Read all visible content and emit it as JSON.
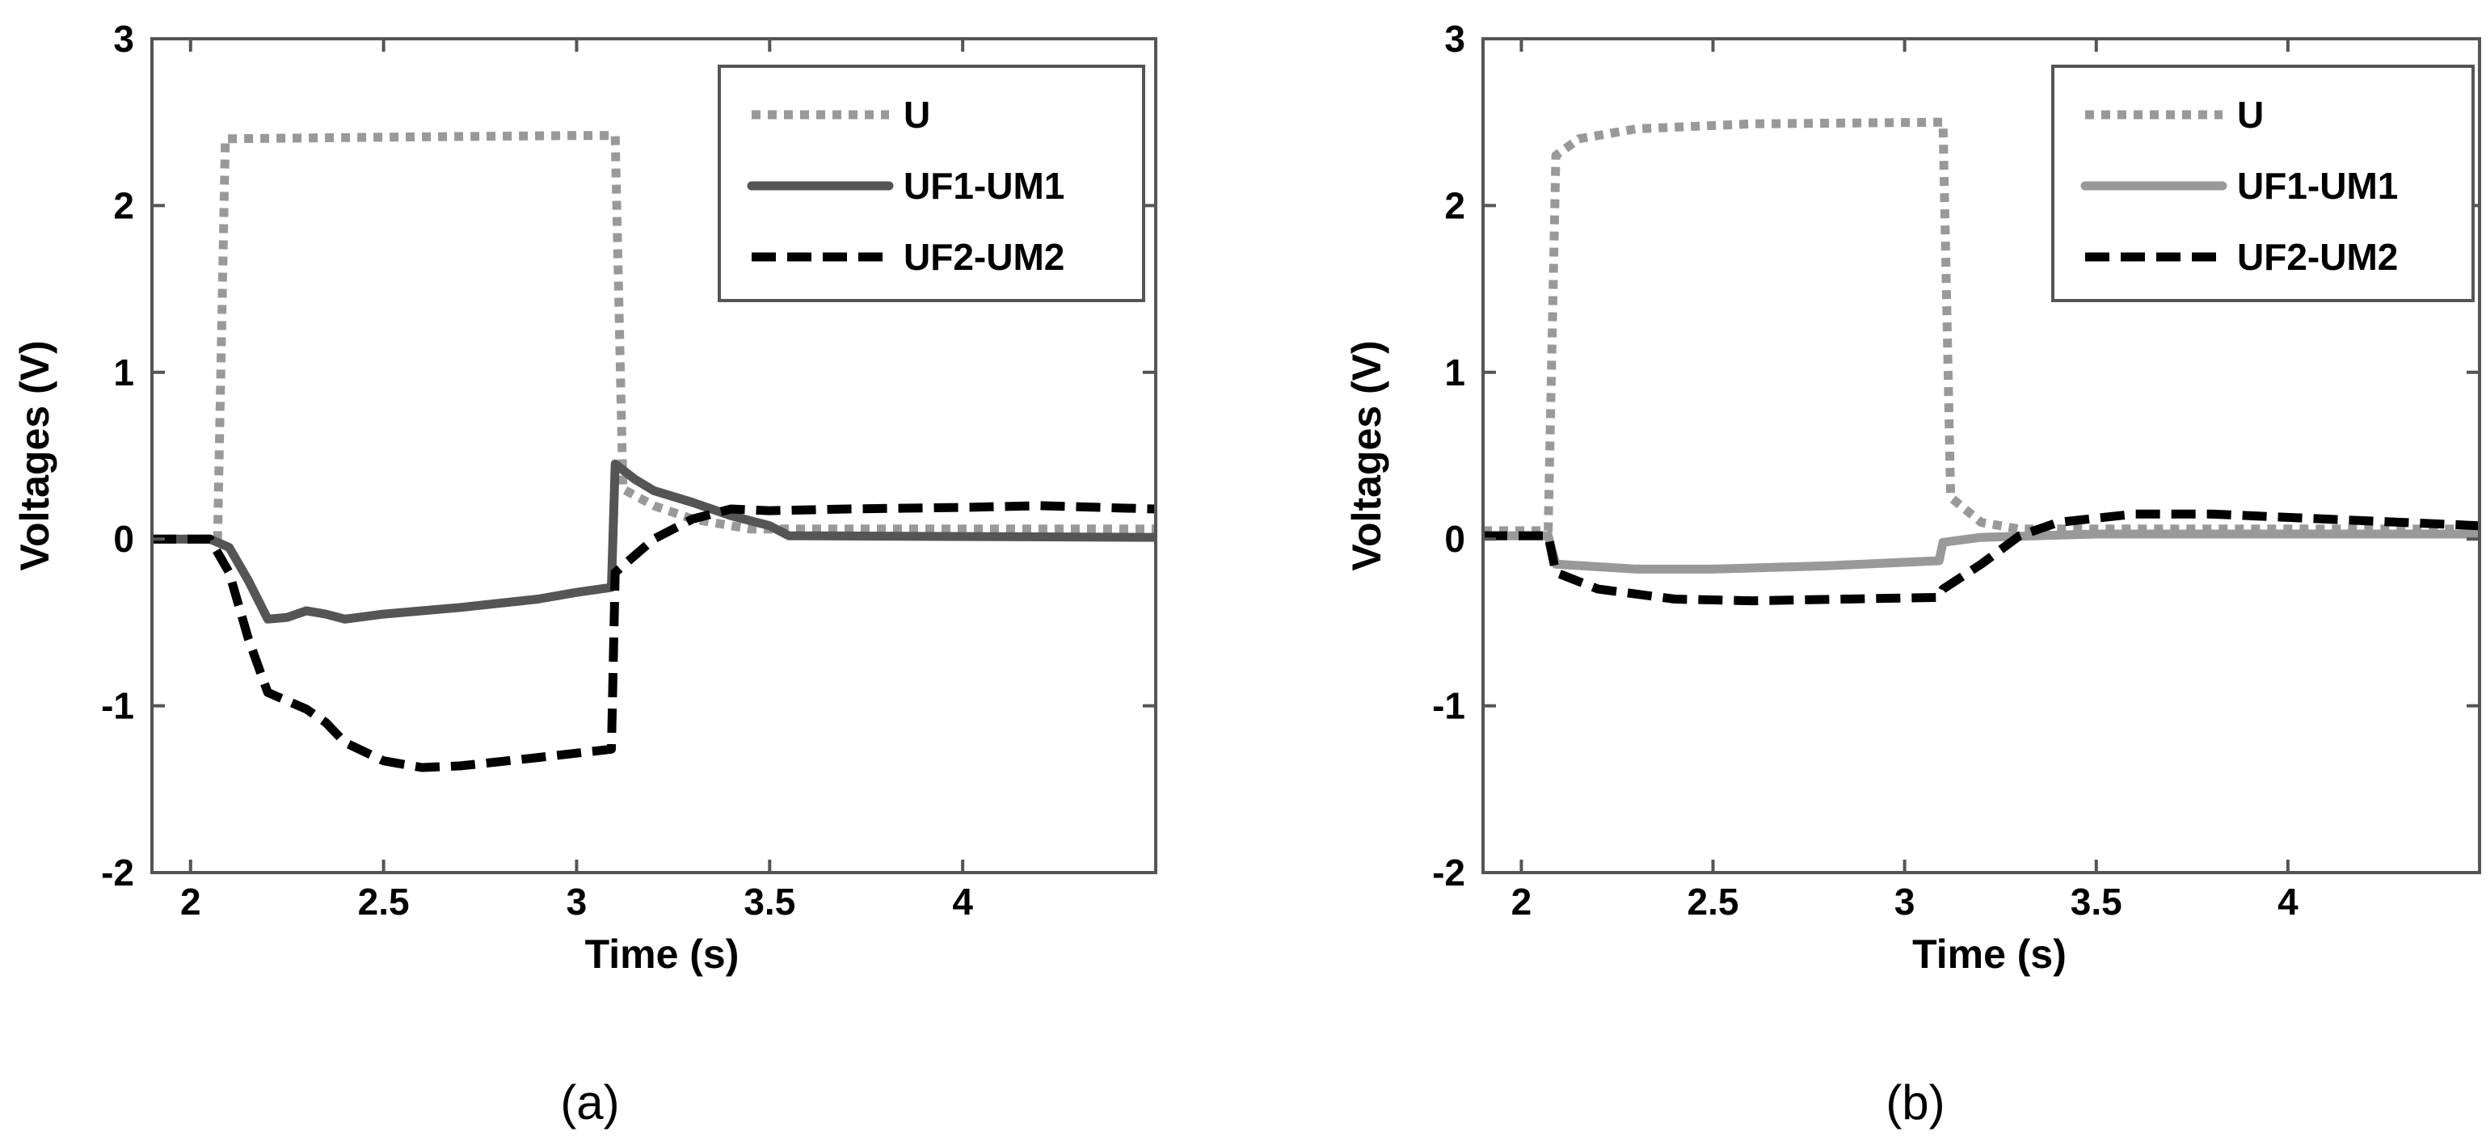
{
  "chart_data": [
    {
      "type": "line",
      "panel_label": "(a)",
      "xlabel": "Time (s)",
      "ylabel": "Voltages (V)",
      "xlim": [
        1.9,
        4.5
      ],
      "ylim": [
        -2,
        3
      ],
      "xticks": [
        "2",
        "2.5",
        "3",
        "3.5",
        "4"
      ],
      "yticks": [
        "-2",
        "-1",
        "0",
        "1",
        "2",
        "3"
      ],
      "grid": false,
      "legend": "top-right",
      "series": [
        {
          "name": "U",
          "color": "#999999",
          "style": "dotted",
          "points": [
            [
              1.9,
              0
            ],
            [
              2.07,
              0
            ],
            [
              2.09,
              2.4
            ],
            [
              2.5,
              2.41
            ],
            [
              3.0,
              2.42
            ],
            [
              3.1,
              2.42
            ],
            [
              3.12,
              0.3
            ],
            [
              3.2,
              0.2
            ],
            [
              3.3,
              0.12
            ],
            [
              3.45,
              0.06
            ],
            [
              4.5,
              0.06
            ]
          ]
        },
        {
          "name": "UF1-UM1",
          "color": "#555555",
          "style": "solid",
          "points": [
            [
              1.9,
              0
            ],
            [
              2.05,
              0
            ],
            [
              2.1,
              -0.05
            ],
            [
              2.15,
              -0.25
            ],
            [
              2.2,
              -0.48
            ],
            [
              2.25,
              -0.47
            ],
            [
              2.3,
              -0.43
            ],
            [
              2.35,
              -0.45
            ],
            [
              2.4,
              -0.48
            ],
            [
              2.5,
              -0.45
            ],
            [
              2.7,
              -0.41
            ],
            [
              2.9,
              -0.36
            ],
            [
              3.0,
              -0.32
            ],
            [
              3.09,
              -0.29
            ],
            [
              3.1,
              0.45
            ],
            [
              3.15,
              0.36
            ],
            [
              3.2,
              0.29
            ],
            [
              3.3,
              0.22
            ],
            [
              3.4,
              0.14
            ],
            [
              3.5,
              0.08
            ],
            [
              3.55,
              0.02
            ],
            [
              4.5,
              0.01
            ]
          ]
        },
        {
          "name": "UF2-UM2",
          "color": "#000000",
          "style": "dashed",
          "points": [
            [
              1.9,
              0
            ],
            [
              2.05,
              0
            ],
            [
              2.1,
              -0.2
            ],
            [
              2.15,
              -0.6
            ],
            [
              2.2,
              -0.92
            ],
            [
              2.3,
              -1.02
            ],
            [
              2.35,
              -1.1
            ],
            [
              2.4,
              -1.22
            ],
            [
              2.5,
              -1.33
            ],
            [
              2.6,
              -1.37
            ],
            [
              2.7,
              -1.36
            ],
            [
              2.9,
              -1.31
            ],
            [
              3.09,
              -1.26
            ],
            [
              3.1,
              -0.2
            ],
            [
              3.15,
              -0.1
            ],
            [
              3.2,
              0.0
            ],
            [
              3.3,
              0.12
            ],
            [
              3.4,
              0.18
            ],
            [
              3.5,
              0.17
            ],
            [
              3.7,
              0.18
            ],
            [
              4.0,
              0.19
            ],
            [
              4.2,
              0.2
            ],
            [
              4.5,
              0.18
            ]
          ]
        }
      ]
    },
    {
      "type": "line",
      "panel_label": "(b)",
      "xlabel": "Time (s)",
      "ylabel": "Voltages (V)",
      "xlim": [
        1.9,
        4.5
      ],
      "ylim": [
        -2,
        3
      ],
      "xticks": [
        "2",
        "2.5",
        "3",
        "3.5",
        "4"
      ],
      "yticks": [
        "-2",
        "-1",
        "0",
        "1",
        "2",
        "3"
      ],
      "grid": false,
      "legend": "top-right",
      "series": [
        {
          "name": "U",
          "color": "#999999",
          "style": "dotted",
          "points": [
            [
              1.9,
              0.05
            ],
            [
              2.07,
              0.05
            ],
            [
              2.09,
              2.3
            ],
            [
              2.15,
              2.4
            ],
            [
              2.3,
              2.46
            ],
            [
              2.6,
              2.49
            ],
            [
              3.1,
              2.5
            ],
            [
              3.12,
              0.25
            ],
            [
              3.2,
              0.1
            ],
            [
              3.3,
              0.06
            ],
            [
              4.5,
              0.06
            ]
          ]
        },
        {
          "name": "UF1-UM1",
          "color": "#999999",
          "style": "solid",
          "points": [
            [
              1.9,
              0.02
            ],
            [
              2.07,
              0.02
            ],
            [
              2.09,
              -0.15
            ],
            [
              2.3,
              -0.18
            ],
            [
              2.5,
              -0.18
            ],
            [
              2.8,
              -0.16
            ],
            [
              3.09,
              -0.13
            ],
            [
              3.1,
              -0.02
            ],
            [
              3.2,
              0.01
            ],
            [
              3.5,
              0.03
            ],
            [
              4.5,
              0.03
            ]
          ]
        },
        {
          "name": "UF2-UM2",
          "color": "#000000",
          "style": "dashed",
          "points": [
            [
              1.9,
              0.02
            ],
            [
              2.07,
              0.02
            ],
            [
              2.09,
              -0.2
            ],
            [
              2.2,
              -0.3
            ],
            [
              2.4,
              -0.36
            ],
            [
              2.6,
              -0.37
            ],
            [
              3.09,
              -0.35
            ],
            [
              3.1,
              -0.3
            ],
            [
              3.2,
              -0.15
            ],
            [
              3.3,
              0.02
            ],
            [
              3.4,
              0.1
            ],
            [
              3.6,
              0.15
            ],
            [
              3.8,
              0.15
            ],
            [
              4.0,
              0.13
            ],
            [
              4.3,
              0.1
            ],
            [
              4.5,
              0.08
            ]
          ]
        }
      ]
    }
  ]
}
